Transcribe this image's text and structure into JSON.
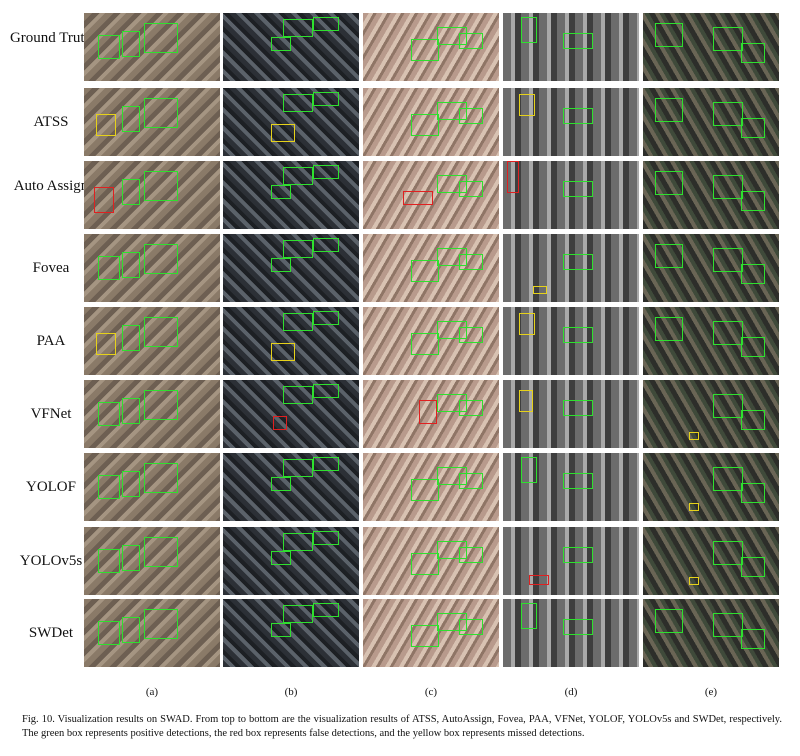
{
  "figure": {
    "row_labels": [
      "Ground Truth",
      "ATSS",
      "Auto Assign",
      "Fovea",
      "PAA",
      "VFNet",
      "YOLOF",
      "YOLOv5s",
      "SWDet"
    ],
    "column_labels": [
      "(a)",
      "(b)",
      "(c)",
      "(d)",
      "(e)"
    ],
    "caption": "Fig. 10.  Visualization results on SWAD. From top to bottom are the visualization results of ATSS, AutoAssign, Fovea, PAA, VFNet, YOLOF, YOLOv5s and SWDet, respectively. The green box represents positive detections, the red box represents false detections, and the yellow box represents missed detections."
  }
}
